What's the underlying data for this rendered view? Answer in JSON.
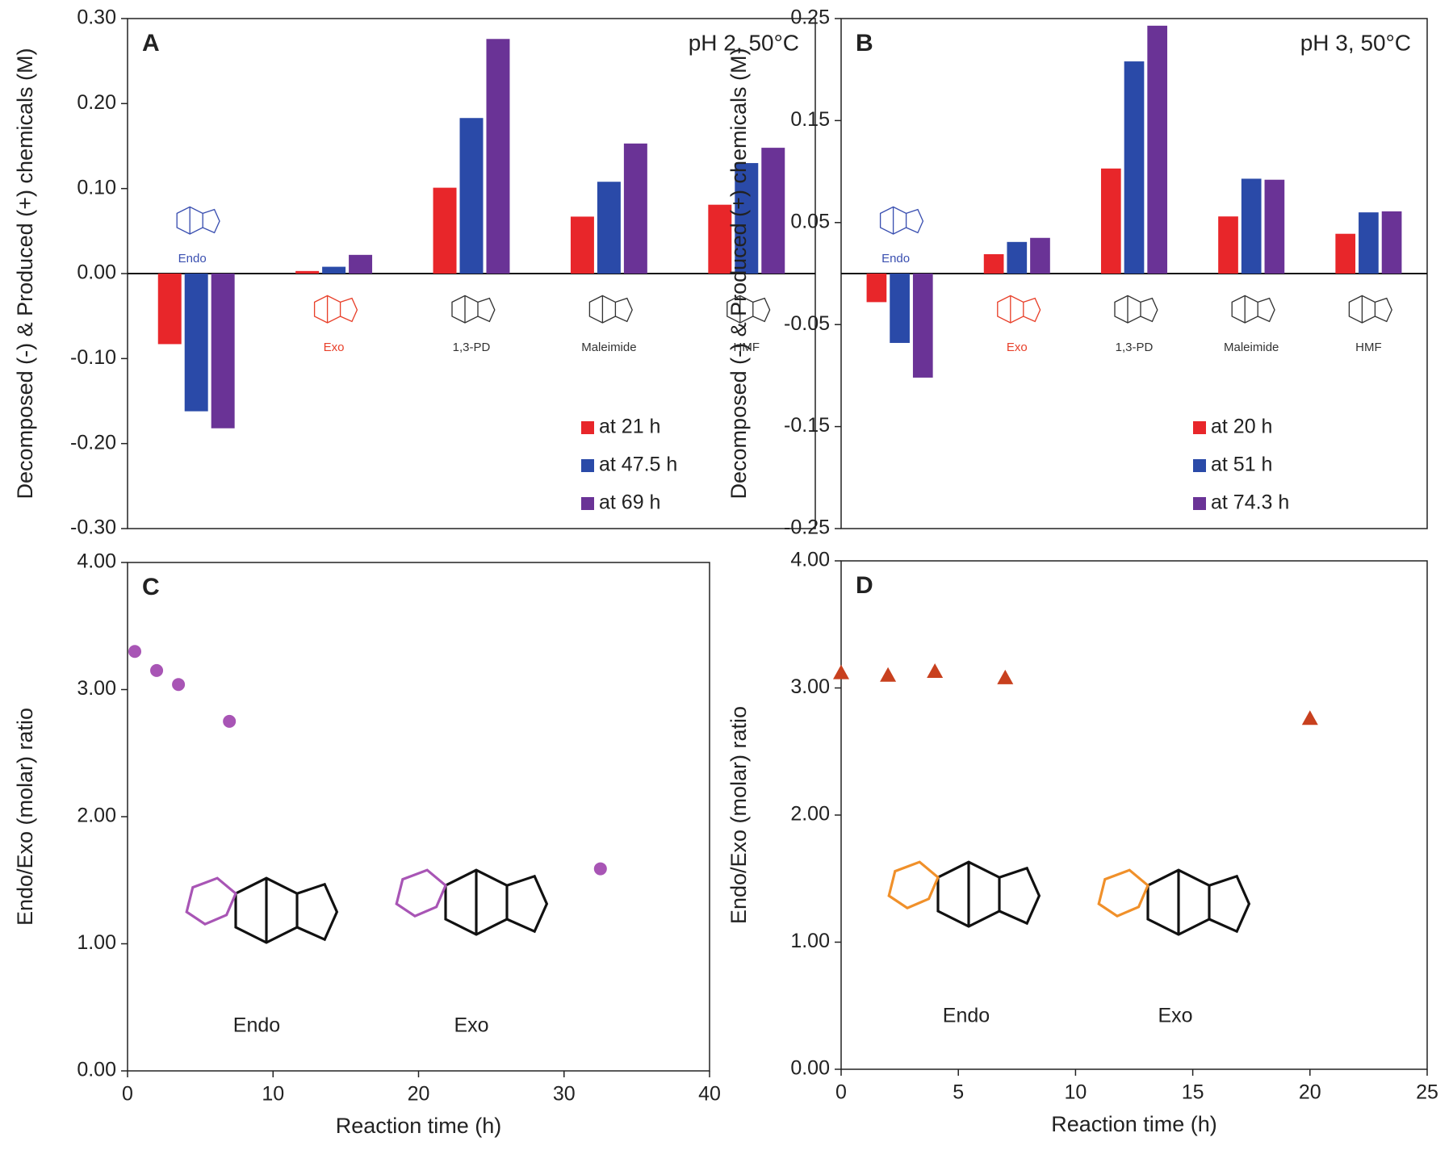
{
  "chart_data": [
    {
      "type": "bar",
      "panel": "A",
      "condition": "pH 2, 50°C",
      "ylabel": "Decomposed (-) & Produced (+) chemicals (M)",
      "categories": [
        "Endo",
        "Exo",
        "1,3-PD",
        "Maleimide",
        "HMF"
      ],
      "category_colors": [
        "#3a4fb0",
        "#e8402a",
        "#333333",
        "#333333",
        "#333333"
      ],
      "series": [
        {
          "name": "at 21 h",
          "color": "#e8262a",
          "values": [
            -0.083,
            0.003,
            0.101,
            0.067,
            0.081
          ]
        },
        {
          "name": "at 47.5 h",
          "color": "#2a4aa8",
          "values": [
            -0.162,
            0.008,
            0.183,
            0.108,
            0.13
          ]
        },
        {
          "name": "at 69 h",
          "color": "#6a3396",
          "values": [
            -0.182,
            0.022,
            0.276,
            0.153,
            0.148
          ]
        }
      ],
      "ylim": [
        -0.3,
        0.3
      ],
      "yticks": [
        {
          "value": -0.3,
          "label": "-0.30"
        },
        {
          "value": -0.2,
          "label": "-0.20"
        },
        {
          "value": -0.1,
          "label": "-0.10"
        },
        {
          "value": 0,
          "label": "0.00"
        },
        {
          "value": 0.1,
          "label": "0.10"
        },
        {
          "value": 0.2,
          "label": "0.20"
        },
        {
          "value": 0.3,
          "label": "0.30"
        }
      ],
      "legend": "lower right"
    },
    {
      "type": "bar",
      "panel": "B",
      "condition": "pH 3, 50°C",
      "ylabel": "Decomposed (-) & Produced (+) chemicals (M)",
      "categories": [
        "Endo",
        "Exo",
        "1,3-PD",
        "Maleimide",
        "HMF"
      ],
      "category_colors": [
        "#3a4fb0",
        "#e8402a",
        "#333333",
        "#333333",
        "#333333"
      ],
      "series": [
        {
          "name": "at 20 h",
          "color": "#e8262a",
          "values": [
            -0.028,
            0.019,
            0.103,
            0.056,
            0.039
          ]
        },
        {
          "name": "at 51 h",
          "color": "#2a4aa8",
          "values": [
            -0.068,
            0.031,
            0.208,
            0.093,
            0.06
          ]
        },
        {
          "name": "at 74.3 h",
          "color": "#6a3396",
          "values": [
            -0.102,
            0.035,
            0.243,
            0.092,
            0.061
          ]
        }
      ],
      "ylim": [
        -0.25,
        0.25
      ],
      "yticks": [
        -0.25,
        -0.15,
        -0.05,
        0.05,
        0.15,
        0.25
      ],
      "legend": "lower right"
    },
    {
      "type": "scatter",
      "panel": "C",
      "marker": "circle",
      "color": "#a855b5",
      "xlabel": "Reaction time (h)",
      "ylabel": "Endo/Exo  (molar) ratio",
      "x": [
        0.5,
        2,
        3.5,
        7,
        32.5
      ],
      "values": [
        3.3,
        3.15,
        3.04,
        2.75,
        1.59
      ],
      "xlim": [
        0,
        40
      ],
      "xticks": [
        0,
        10,
        20,
        30,
        40
      ],
      "ylim": [
        0,
        4
      ],
      "yticks": [
        {
          "value": 0,
          "label": "0.00"
        },
        {
          "value": 1,
          "label": "1.00"
        },
        {
          "value": 2,
          "label": "2.00"
        },
        {
          "value": 3,
          "label": "3.00"
        },
        {
          "value": 4,
          "label": "4.00"
        }
      ],
      "structure_labels": [
        "Endo",
        "Exo"
      ],
      "structure_color": "#a855b5"
    },
    {
      "type": "scatter",
      "panel": "D",
      "marker": "triangle",
      "color": "#c8401e",
      "xlabel": "Reaction time (h)",
      "ylabel": "Endo/Exo  (molar) ratio",
      "x": [
        0,
        2,
        4,
        7,
        20
      ],
      "values": [
        3.12,
        3.1,
        3.13,
        3.08,
        2.76
      ],
      "xlim": [
        0,
        25
      ],
      "xticks": [
        0,
        5,
        10,
        15,
        20,
        25
      ],
      "ylim": [
        0,
        4
      ],
      "yticks": [
        {
          "value": 0,
          "label": "0.00"
        },
        {
          "value": 1,
          "label": "1.00"
        },
        {
          "value": 2,
          "label": "2.00"
        },
        {
          "value": 3,
          "label": "3.00"
        },
        {
          "value": 4,
          "label": "4.00"
        }
      ],
      "structure_labels": [
        "Endo",
        "Exo"
      ],
      "structure_color": "#f0902a"
    }
  ]
}
